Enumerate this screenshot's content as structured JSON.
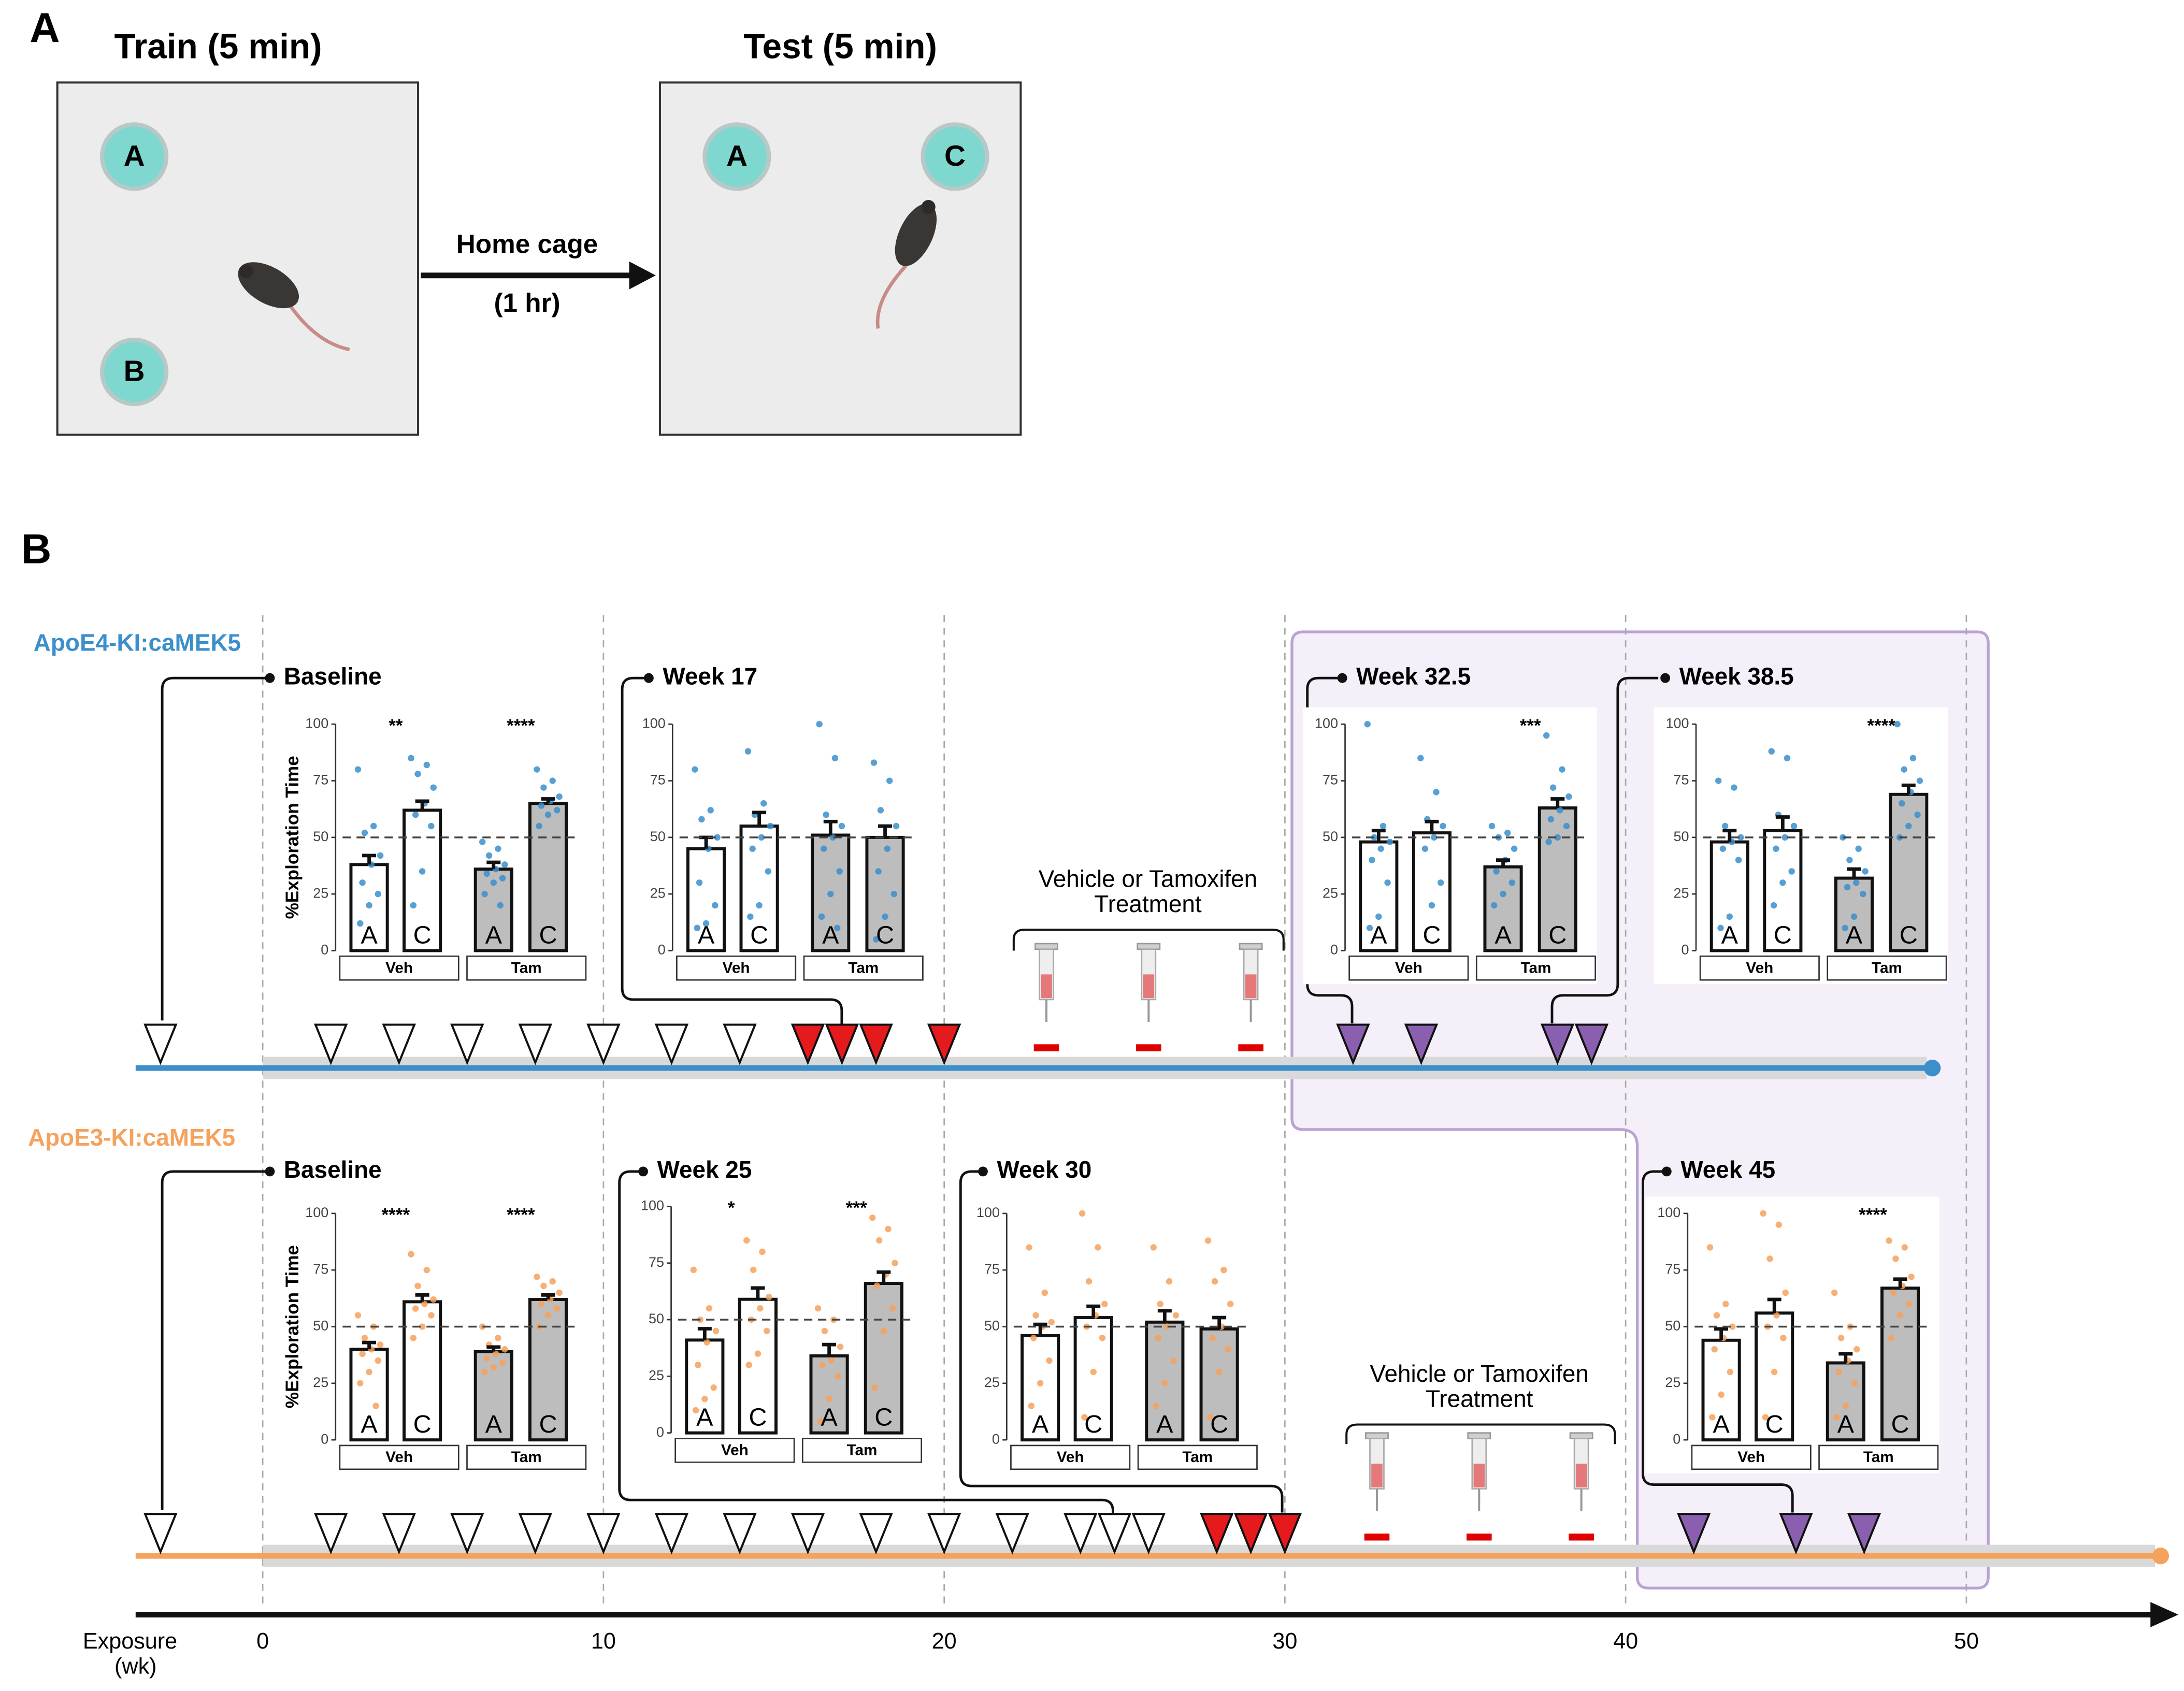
{
  "panel_a": {
    "label": "A",
    "train_title": "Train (5 min)",
    "test_title": "Test (5 min)",
    "train_objects": [
      "A",
      "B"
    ],
    "test_objects": [
      "A",
      "C"
    ],
    "transition": [
      "Home cage",
      "(1 hr)"
    ]
  },
  "panel_b": {
    "label": "B",
    "treatment_label": [
      "Vehicle or Tamoxifen",
      "Treatment"
    ],
    "xlabel": [
      "Exposure",
      "(wk)"
    ],
    "xlim": [
      -3.73,
      56.1
    ],
    "xticks": [
      0,
      10,
      20,
      30,
      40,
      50
    ],
    "timelines": [
      {
        "name": "ApoE4-KI:caMEK5",
        "color": "#3b8fcb",
        "end": 49,
        "markers": [
          {
            "color": "#ffffff",
            "weeks": [
              -3,
              2,
              4,
              6,
              8,
              10,
              12,
              14
            ]
          },
          {
            "color": "#e41a1c",
            "weeks": [
              16,
              17,
              18,
              20
            ]
          },
          {
            "color": "#8b5fb0",
            "weeks": [
              32,
              34,
              38,
              39
            ]
          }
        ],
        "injections": [
          23,
          26,
          29
        ]
      },
      {
        "name": "ApoE3-KI:caMEK5",
        "color": "#f5a25d",
        "end": 55.7,
        "markers": [
          {
            "color": "#ffffff",
            "weeks": [
              -3,
              2,
              4,
              6,
              8,
              10,
              12,
              14,
              16,
              18,
              20,
              22,
              24,
              25,
              26
            ]
          },
          {
            "color": "#e41a1c",
            "weeks": [
              28,
              29,
              30
            ]
          },
          {
            "color": "#8b5fb0",
            "weeks": [
              42,
              45,
              47
            ]
          }
        ],
        "injections": [
          32.7,
          35.7,
          38.7
        ]
      }
    ]
  },
  "chart_data": [
    {
      "type": "bar",
      "title": "Baseline",
      "ylabel": "%Exploration Time",
      "categories": [
        "A",
        "C",
        "A",
        "C"
      ],
      "groups": [
        "Veh",
        "Tam"
      ],
      "values": [
        38,
        62,
        36,
        65
      ],
      "errors": [
        4,
        4,
        3,
        2
      ],
      "annotations": [
        "**",
        "****"
      ],
      "points": [
        [
          80,
          55,
          52,
          42,
          38,
          30,
          25,
          20,
          12
        ],
        [
          85,
          82,
          78,
          72,
          65,
          60,
          55,
          35,
          20
        ],
        [
          48,
          45,
          42,
          38,
          36,
          34,
          32,
          30,
          25,
          20
        ],
        [
          80,
          75,
          72,
          68,
          66,
          64,
          62,
          60,
          55
        ]
      ],
      "point_color": "#3b8fcb",
      "colors": [
        "#ffffff",
        "#bdbdbd"
      ],
      "ylim": [
        0,
        100
      ],
      "yticks": [
        0,
        25,
        50,
        75,
        100
      ],
      "reference_line": 50
    },
    {
      "type": "bar",
      "title": "Week 17",
      "categories": [
        "A",
        "C",
        "A",
        "C"
      ],
      "groups": [
        "Veh",
        "Tam"
      ],
      "values": [
        45,
        55,
        51,
        50
      ],
      "errors": [
        5,
        6,
        6,
        5
      ],
      "annotations": [
        null,
        null
      ],
      "points": [
        [
          80,
          62,
          58,
          50,
          45,
          30,
          20,
          12,
          10
        ],
        [
          88,
          65,
          60,
          55,
          50,
          45,
          35,
          20,
          15
        ],
        [
          100,
          85,
          60,
          55,
          50,
          45,
          35,
          25,
          15,
          10
        ],
        [
          83,
          75,
          62,
          55,
          45,
          35,
          25,
          15,
          5
        ]
      ],
      "point_color": "#3b8fcb",
      "colors": [
        "#ffffff",
        "#bdbdbd"
      ],
      "ylim": [
        0,
        100
      ],
      "yticks": [
        0,
        25,
        50,
        75,
        100
      ],
      "reference_line": 50
    },
    {
      "type": "bar",
      "title": "Week 32.5",
      "categories": [
        "A",
        "C",
        "A",
        "C"
      ],
      "groups": [
        "Veh",
        "Tam"
      ],
      "values": [
        48,
        52,
        37,
        63
      ],
      "errors": [
        5,
        5,
        3,
        4
      ],
      "annotations": [
        null,
        "***"
      ],
      "points": [
        [
          100,
          55,
          50,
          48,
          45,
          40,
          30,
          15,
          10
        ],
        [
          85,
          70,
          58,
          55,
          50,
          45,
          30,
          20
        ],
        [
          55,
          52,
          50,
          45,
          40,
          35,
          30,
          25,
          20
        ],
        [
          95,
          80,
          72,
          68,
          62,
          58,
          55,
          50,
          48
        ]
      ],
      "point_color": "#3b8fcb",
      "colors": [
        "#ffffff",
        "#bdbdbd"
      ],
      "ylim": [
        0,
        100
      ],
      "yticks": [
        0,
        25,
        50,
        75,
        100
      ],
      "reference_line": 50
    },
    {
      "type": "bar",
      "title": "Week 38.5",
      "categories": [
        "A",
        "C",
        "A",
        "C"
      ],
      "groups": [
        "Veh",
        "Tam"
      ],
      "values": [
        48,
        53,
        32,
        69
      ],
      "errors": [
        5,
        6,
        4,
        4
      ],
      "annotations": [
        null,
        "****"
      ],
      "points": [
        [
          75,
          72,
          55,
          50,
          48,
          45,
          40,
          15,
          10
        ],
        [
          88,
          85,
          60,
          55,
          50,
          45,
          35,
          30,
          20
        ],
        [
          50,
          45,
          40,
          35,
          30,
          28,
          25,
          15,
          10
        ],
        [
          100,
          85,
          80,
          75,
          70,
          65,
          60,
          55,
          50
        ]
      ],
      "point_color": "#3b8fcb",
      "colors": [
        "#ffffff",
        "#bdbdbd"
      ],
      "ylim": [
        0,
        100
      ],
      "yticks": [
        0,
        25,
        50,
        75,
        100
      ],
      "reference_line": 50
    },
    {
      "type": "bar",
      "title": "Baseline",
      "ylabel": "%Exploration Time",
      "categories": [
        "A",
        "C",
        "A",
        "C"
      ],
      "groups": [
        "Veh",
        "Tam"
      ],
      "values": [
        40,
        61,
        39,
        62
      ],
      "errors": [
        3,
        3,
        2,
        2
      ],
      "annotations": [
        "****",
        "****"
      ],
      "points": [
        [
          55,
          50,
          45,
          42,
          40,
          38,
          35,
          30,
          25,
          15
        ],
        [
          82,
          75,
          68,
          62,
          60,
          58,
          55,
          50,
          45
        ],
        [
          50,
          45,
          42,
          40,
          38,
          36,
          34,
          32,
          30
        ],
        [
          72,
          70,
          68,
          65,
          62,
          60,
          58,
          55,
          50
        ]
      ],
      "point_color": "#f5a25d",
      "colors": [
        "#ffffff",
        "#bdbdbd"
      ],
      "ylim": [
        0,
        100
      ],
      "yticks": [
        0,
        25,
        50,
        75,
        100
      ],
      "reference_line": 50
    },
    {
      "type": "bar",
      "title": "Week 25",
      "categories": [
        "A",
        "C",
        "A",
        "C"
      ],
      "groups": [
        "Veh",
        "Tam"
      ],
      "values": [
        41,
        59,
        34,
        66
      ],
      "errors": [
        5,
        5,
        5,
        5
      ],
      "annotations": [
        "*",
        "***"
      ],
      "points": [
        [
          72,
          55,
          50,
          45,
          40,
          30,
          20,
          15,
          10
        ],
        [
          85,
          80,
          72,
          60,
          55,
          50,
          45,
          35,
          30
        ],
        [
          55,
          50,
          45,
          38,
          32,
          30,
          25,
          15,
          5
        ],
        [
          95,
          90,
          85,
          75,
          70,
          65,
          55,
          45,
          20
        ]
      ],
      "point_color": "#f5a25d",
      "colors": [
        "#ffffff",
        "#bdbdbd"
      ],
      "ylim": [
        0,
        100
      ],
      "yticks": [
        0,
        25,
        50,
        75,
        100
      ],
      "reference_line": 50
    },
    {
      "type": "bar",
      "title": "Week 30",
      "categories": [
        "A",
        "C",
        "A",
        "C"
      ],
      "groups": [
        "Veh",
        "Tam"
      ],
      "values": [
        46,
        54,
        52,
        49
      ],
      "errors": [
        5,
        5,
        5,
        5
      ],
      "annotations": [
        null,
        null
      ],
      "points": [
        [
          85,
          65,
          55,
          52,
          50,
          45,
          35,
          25,
          15
        ],
        [
          100,
          85,
          70,
          60,
          55,
          50,
          45,
          30,
          10
        ],
        [
          85,
          70,
          60,
          55,
          50,
          45,
          35,
          25,
          15
        ],
        [
          88,
          75,
          70,
          60,
          50,
          45,
          40,
          30,
          10
        ]
      ],
      "point_color": "#f5a25d",
      "colors": [
        "#ffffff",
        "#bdbdbd"
      ],
      "ylim": [
        0,
        100
      ],
      "yticks": [
        0,
        25,
        50,
        75,
        100
      ],
      "reference_line": 50
    },
    {
      "type": "bar",
      "title": "Week 45",
      "categories": [
        "A",
        "C",
        "A",
        "C"
      ],
      "groups": [
        "Veh",
        "Tam"
      ],
      "values": [
        44,
        56,
        34,
        67
      ],
      "errors": [
        5,
        6,
        4,
        4
      ],
      "annotations": [
        null,
        "****"
      ],
      "points": [
        [
          85,
          60,
          55,
          50,
          45,
          40,
          30,
          20,
          10
        ],
        [
          100,
          95,
          80,
          65,
          55,
          50,
          45,
          30,
          10
        ],
        [
          65,
          50,
          45,
          40,
          35,
          30,
          25,
          15,
          10
        ],
        [
          88,
          85,
          80,
          72,
          68,
          65,
          60,
          55,
          45
        ]
      ],
      "point_color": "#f5a25d",
      "colors": [
        "#ffffff",
        "#bdbdbd"
      ],
      "ylim": [
        0,
        100
      ],
      "yticks": [
        0,
        25,
        50,
        75,
        100
      ],
      "reference_line": 50
    }
  ]
}
